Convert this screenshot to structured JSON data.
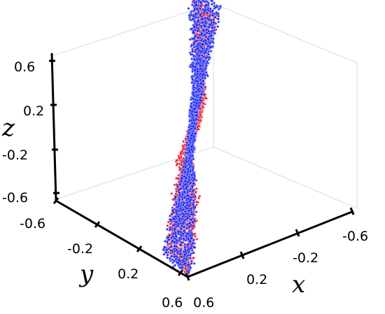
{
  "chart_data": {
    "type": "scatter",
    "projection": "3d",
    "title": "",
    "xlabel": "x",
    "ylabel": "y",
    "zlabel": "z",
    "xlim": [
      -0.6,
      0.6
    ],
    "ylim": [
      -0.6,
      0.6
    ],
    "zlim": [
      -0.6,
      0.6
    ],
    "x_ticks": [
      "-0.6",
      "-0.2",
      "0.2",
      "0.6"
    ],
    "y_ticks": [
      "-0.6",
      "-0.2",
      "0.2",
      "0.6"
    ],
    "z_ticks": [
      "-0.6",
      "-0.2",
      "0.2",
      "0.6"
    ],
    "grid": false,
    "series": [
      {
        "color": "#dd1111",
        "halo_color": "#ffb3cc",
        "note_points": "dense twisted band; representative samples (x, y, z)",
        "points": [
          [
            -0.55,
            0.55,
            0.52
          ],
          [
            -0.5,
            0.5,
            0.47
          ],
          [
            -0.45,
            0.45,
            0.42
          ],
          [
            -0.4,
            0.42,
            0.36
          ],
          [
            -0.35,
            0.36,
            0.33
          ],
          [
            -0.3,
            0.32,
            0.28
          ],
          [
            -0.25,
            0.22,
            0.25
          ],
          [
            -0.2,
            0.18,
            0.2
          ],
          [
            -0.15,
            0.1,
            0.16
          ],
          [
            -0.1,
            0.06,
            0.1
          ],
          [
            -0.05,
            0.02,
            0.05
          ],
          [
            0.0,
            0.0,
            0.0
          ],
          [
            0.05,
            -0.03,
            -0.05
          ],
          [
            0.1,
            -0.07,
            -0.1
          ],
          [
            0.15,
            -0.12,
            -0.15
          ],
          [
            0.2,
            -0.2,
            -0.2
          ],
          [
            0.25,
            -0.26,
            -0.24
          ],
          [
            0.3,
            -0.31,
            -0.29
          ],
          [
            0.35,
            -0.36,
            -0.34
          ],
          [
            0.4,
            -0.41,
            -0.38
          ],
          [
            0.45,
            -0.46,
            -0.43
          ],
          [
            0.5,
            -0.5,
            -0.48
          ],
          [
            0.55,
            -0.54,
            -0.52
          ]
        ]
      },
      {
        "color": "#1a1af0",
        "halo_color": "#9fa8ff",
        "points": [
          [
            -0.55,
            0.55,
            0.57
          ],
          [
            -0.5,
            0.5,
            0.5
          ],
          [
            -0.45,
            0.46,
            0.45
          ],
          [
            -0.4,
            0.4,
            0.41
          ],
          [
            -0.35,
            0.35,
            0.36
          ],
          [
            -0.3,
            0.3,
            0.3
          ],
          [
            -0.25,
            0.25,
            0.26
          ],
          [
            -0.2,
            0.19,
            0.21
          ],
          [
            -0.15,
            0.14,
            0.16
          ],
          [
            -0.1,
            0.1,
            0.11
          ],
          [
            -0.05,
            0.05,
            0.05
          ],
          [
            0.0,
            0.0,
            0.0
          ],
          [
            0.05,
            -0.05,
            -0.05
          ],
          [
            0.1,
            -0.1,
            -0.1
          ],
          [
            0.15,
            -0.15,
            -0.15
          ],
          [
            0.2,
            -0.2,
            -0.2
          ],
          [
            0.25,
            -0.25,
            -0.25
          ],
          [
            0.3,
            -0.3,
            -0.31
          ],
          [
            0.35,
            -0.35,
            -0.35
          ],
          [
            0.4,
            -0.4,
            -0.4
          ],
          [
            0.45,
            -0.45,
            -0.45
          ],
          [
            0.5,
            -0.5,
            -0.5
          ],
          [
            0.55,
            -0.55,
            -0.55
          ]
        ]
      }
    ]
  }
}
